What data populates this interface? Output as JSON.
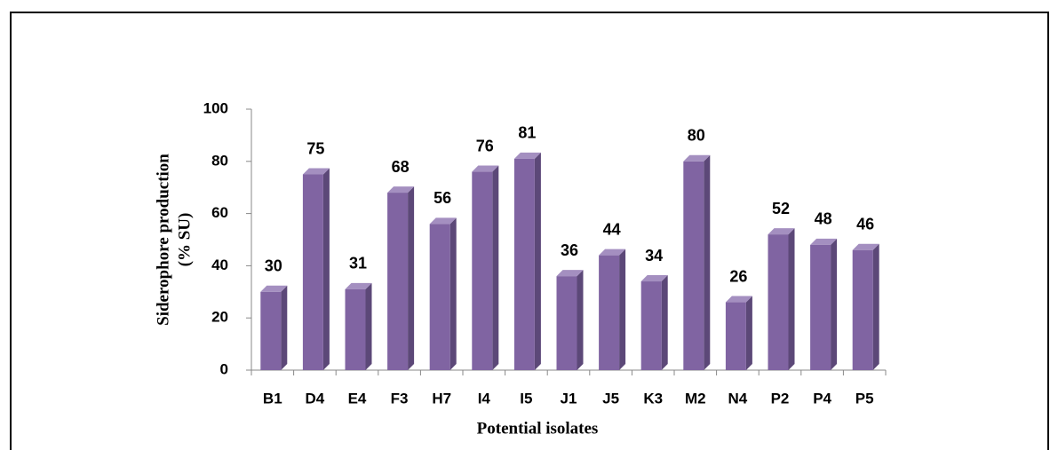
{
  "chart_data": {
    "type": "bar3d",
    "y_label": [
      "Siderophore  production",
      "(% SU)"
    ],
    "x_label": "Potential isolates",
    "categories": [
      "B1",
      "D4",
      "E4",
      "F3",
      "H7",
      "I4",
      "I5",
      "J1",
      "J5",
      "K3",
      "M2",
      "N4",
      "P2",
      "P4",
      "P5"
    ],
    "values": [
      30,
      75,
      31,
      68,
      56,
      76,
      81,
      36,
      44,
      34,
      80,
      26,
      52,
      48,
      46
    ],
    "color": "#8064a2",
    "ylim": [
      0,
      100
    ],
    "yticks": [
      0,
      20,
      40,
      60,
      80,
      100
    ],
    "grid": false
  }
}
